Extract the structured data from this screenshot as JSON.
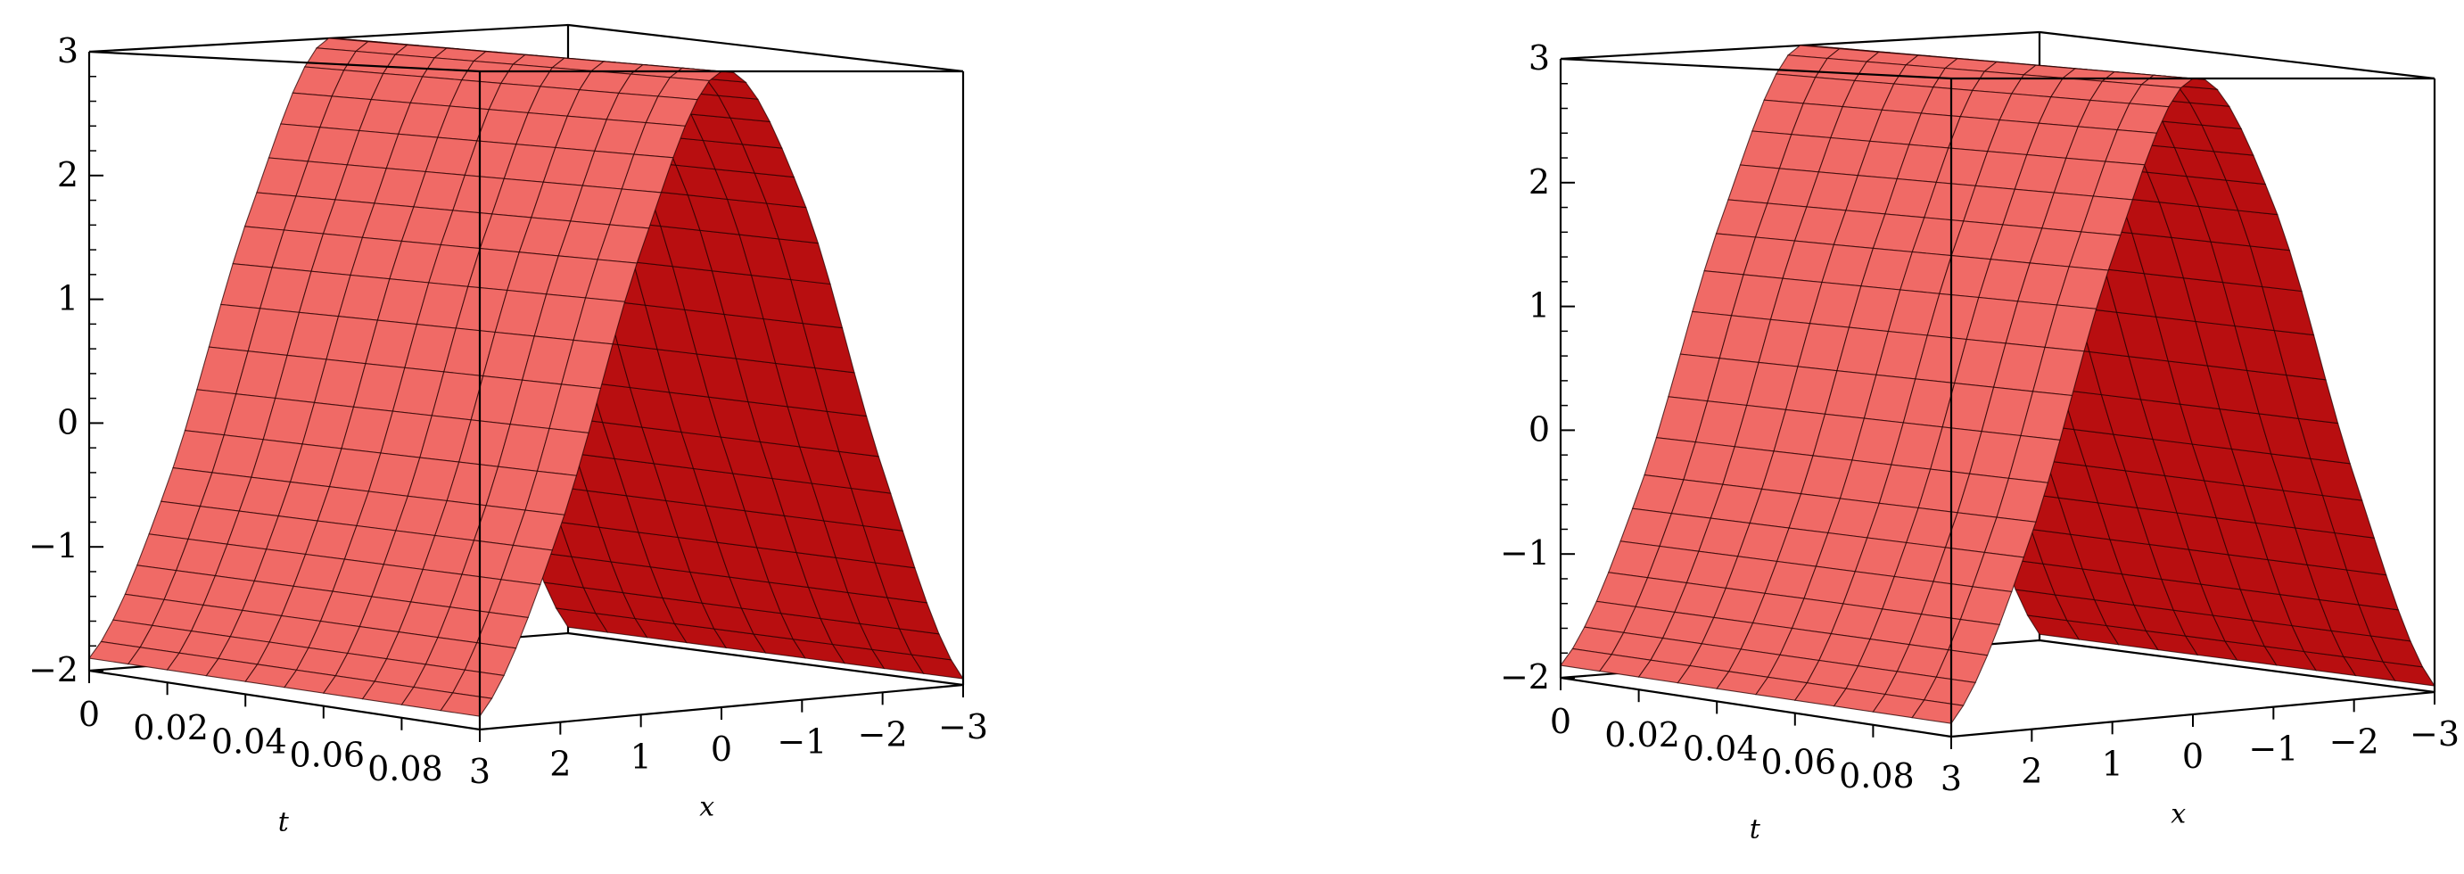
{
  "chart_data": [
    {
      "type": "surface3d",
      "xlabel": "t",
      "ylabel": "x",
      "zlabel": "",
      "t_ticks": [
        "0",
        "0.02",
        "0.04",
        "0.06",
        "0.08"
      ],
      "x_ticks": [
        "3",
        "2",
        "1",
        "0",
        "−1",
        "−2",
        "−3"
      ],
      "z_ticks": [
        "3",
        "2",
        "1",
        "0",
        "−1",
        "−2"
      ],
      "t_range": [
        0,
        0.1
      ],
      "x_range": [
        3,
        -3
      ],
      "z_range": [
        -2,
        3
      ],
      "profile": {
        "x": [
          3,
          2,
          1,
          0,
          -1,
          -2,
          -3
        ],
        "z": [
          -1.9,
          -0.5,
          1.6,
          3.0,
          2.0,
          -0.2,
          -1.95
        ]
      },
      "colors": {
        "surface_front": "#f06a66",
        "surface_back": "#b80e10",
        "mesh": "#2a0000",
        "box": "#000000"
      }
    },
    {
      "type": "surface3d",
      "xlabel": "t",
      "ylabel": "x",
      "zlabel": "",
      "t_ticks": [
        "0",
        "0.02",
        "0.04",
        "0.06",
        "0.08"
      ],
      "x_ticks": [
        "3",
        "2",
        "1",
        "0",
        "−1",
        "−2",
        "−3"
      ],
      "z_ticks": [
        "3",
        "2",
        "1",
        "0",
        "−1",
        "−2"
      ],
      "t_range": [
        0,
        0.1
      ],
      "x_range": [
        3,
        -3
      ],
      "z_range": [
        -2,
        3
      ],
      "profile": {
        "x": [
          3,
          2,
          1,
          0,
          -1,
          -2,
          -3
        ],
        "z": [
          -1.9,
          -0.5,
          1.6,
          3.0,
          2.0,
          -0.2,
          -1.95
        ]
      },
      "colors": {
        "surface_front": "#f06a66",
        "surface_back": "#b80e10",
        "mesh": "#2a0000",
        "box": "#000000"
      }
    }
  ]
}
